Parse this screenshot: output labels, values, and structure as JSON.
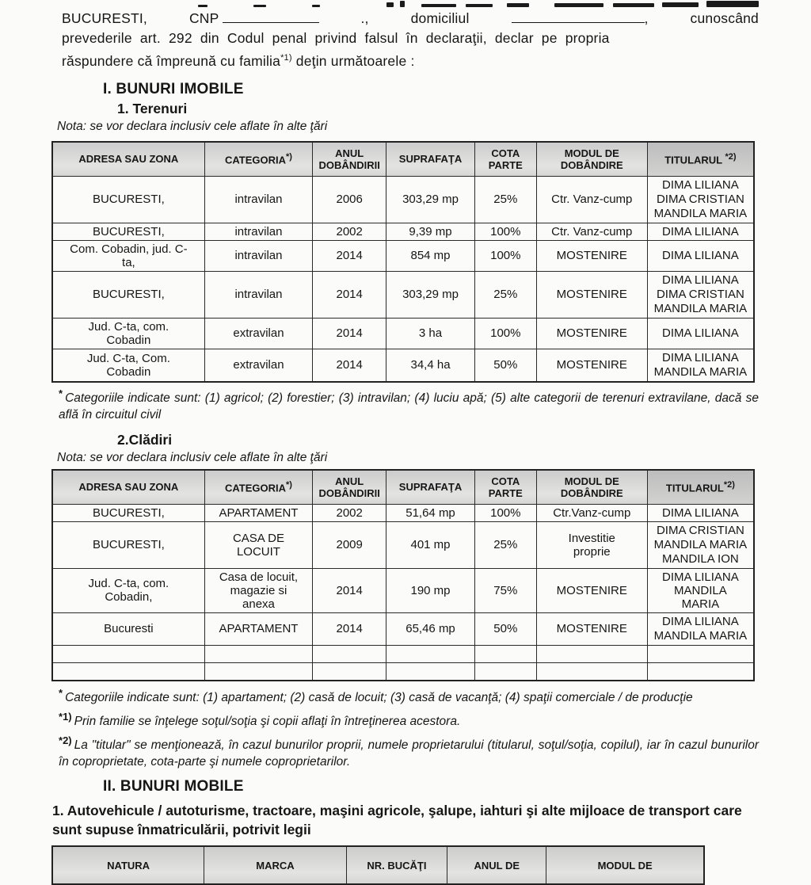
{
  "document": {
    "intro": {
      "line1": {
        "t1": "BUCURESTI,",
        "t2": "CNP",
        "t3": ".,",
        "t4": "domiciliul",
        "t5": ",",
        "t6": "cunoscând"
      },
      "line2": "prevederile art. 292 din Codul penal privind falsul în declaraţii, declar pe propria",
      "line3_text": "răspundere că împreună cu familia",
      "line3_sup": "*1)",
      "line3_tail": " deţin următoarele :"
    },
    "section1": {
      "title": "I. BUNURI IMOBILE",
      "sub1_title": "1. Terenuri",
      "nota1": "Nota: se vor declara inclusiv cele aflate în alte ţări",
      "sub2_title": "2.Clădiri",
      "nota2": "Nota: se vor declara inclusiv cele aflate în alte ţări"
    },
    "tables": {
      "terenuri": {
        "headers": [
          {
            "text": "ADRESA SAU ZONA",
            "sup": ""
          },
          {
            "text": "CATEGORIA",
            "sup": "*)"
          },
          {
            "text": "ANUL\nDOBÂNDIRII",
            "sup": ""
          },
          {
            "text": "SUPRAFAŢA",
            "sup": ""
          },
          {
            "text": "COTA\nPARTE",
            "sup": ""
          },
          {
            "text": "MODUL DE\nDOBÂNDIRE",
            "sup": ""
          },
          {
            "text": "TITULARUL ",
            "sup": "*2)"
          }
        ],
        "rows": [
          [
            "BUCURESTI,",
            "intravilan",
            "2006",
            "303,29 mp",
            "25%",
            "Ctr. Vanz-cump",
            {
              "text": "DIMA LILIANA\nDIMA CRISTIAN\nMANDILA MARIA",
              "small": true
            }
          ],
          [
            "BUCURESTI,",
            "intravilan",
            "2002",
            "9,39 mp",
            "100%",
            "Ctr. Vanz-cump",
            "DIMA LILIANA"
          ],
          [
            "Com. Cobadin, jud. C-\nta,",
            "intravilan",
            "2014",
            "854 mp",
            "100%",
            "MOSTENIRE",
            "DIMA LILIANA"
          ],
          [
            "BUCURESTI,",
            "intravilan",
            "2014",
            "303,29 mp",
            "25%",
            "MOSTENIRE",
            {
              "text": "DIMA LILIANA\nDIMA CRISTIAN\nMANDILA MARIA",
              "small": true
            }
          ],
          [
            "Jud. C-ta, com.\nCobadin",
            "extravilan",
            "2014",
            "3 ha",
            "100%",
            "MOSTENIRE",
            "DIMA LILIANA"
          ],
          [
            "Jud. C-ta, Com.\nCobadin",
            "extravilan",
            "2014",
            "34,4 ha",
            "50%",
            "MOSTENIRE",
            {
              "text": "DIMA LILIANA\nMANDILA MARIA",
              "small": true
            }
          ]
        ],
        "empty_rows": 0
      },
      "cladiri": {
        "headers": [
          {
            "text": "ADRESA SAU ZONA",
            "sup": ""
          },
          {
            "text": "CATEGORIA",
            "sup": "*)"
          },
          {
            "text": "ANUL\nDOBÂNDIRII",
            "sup": ""
          },
          {
            "text": "SUPRAFAŢA",
            "sup": ""
          },
          {
            "text": "COTA\nPARTE",
            "sup": ""
          },
          {
            "text": "MODUL DE\nDOBÂNDIRE",
            "sup": ""
          },
          {
            "text": "TITULARUL",
            "sup": "*2)"
          }
        ],
        "rows": [
          [
            "BUCURESTI,",
            "APARTAMENT",
            "2002",
            "51,64 mp",
            "100%",
            "Ctr.Vanz-cump",
            "DIMA LILIANA"
          ],
          [
            "BUCURESTI,",
            "CASA DE\nLOCUIT",
            "2009",
            "401 mp",
            "25%",
            "Investitie\nproprie",
            {
              "text": "DIMA CRISTIAN\nMANDILA MARIA\nMANDILA ION",
              "small": true
            }
          ],
          [
            "Jud. C-ta, com.\nCobadin,",
            "Casa de locuit,\nmagazie si\nanexa",
            "2014",
            "190 mp",
            "75%",
            "MOSTENIRE",
            "DIMA LILIANA\nMANDILA\nMARIA"
          ],
          [
            {
              "text": "Bucuresti",
              "small": true
            },
            "APARTAMENT",
            "2014",
            "65,46 mp",
            "50%",
            "MOSTENIRE",
            {
              "text": "DIMA LILIANA\nMANDILA MARIA",
              "small": true
            }
          ]
        ],
        "empty_rows": 2
      },
      "autovehicule": {
        "headers": [
          {
            "text": "NATURA",
            "sup": ""
          },
          {
            "text": "MARCA",
            "sup": ""
          },
          {
            "text": "NR. BUCĂŢI",
            "sup": ""
          },
          {
            "text": "ANUL DE",
            "sup": ""
          },
          {
            "text": "MODUL DE",
            "sup": ""
          }
        ],
        "rows": [],
        "empty_rows": 0
      }
    },
    "footnote_terenuri": {
      "star": "*",
      "text": "Categoriile indicate sunt: (1) agricol; (2) forestier; (3) intravilan; (4) luciu apă; (5) alte categorii de terenuri extravilane, dacă se află în circuitul civil"
    },
    "footnotes_cladiri": [
      {
        "star": "*",
        "sup": "",
        "text": "Categoriile indicate sunt: (1) apartament; (2) casă de locuit; (3) casă de vacanţă; (4) spaţii comerciale / de producţie"
      },
      {
        "star": "*",
        "sup": "1)",
        "text": "Prin familie se înţelege soţul/soţia şi copii aflaţi în întreţinerea acestora."
      },
      {
        "star": "*",
        "sup": "2)",
        "text": "La \"titular\" se menţionează, în cazul bunurilor proprii, numele proprietarului (titularul, soţul/soţia, copilul), iar în cazul bunurilor în coproprietate, cota-parte şi numele coproprietarilor."
      }
    ],
    "section2": {
      "title": "II. BUNURI MOBILE",
      "paragraph": "1. Autovehicule / autoturisme,  tractoare, maşini agricole, şalupe, iahturi şi alte mijloace de transport care sunt supuse înmatriculării, potrivit legii"
    }
  }
}
